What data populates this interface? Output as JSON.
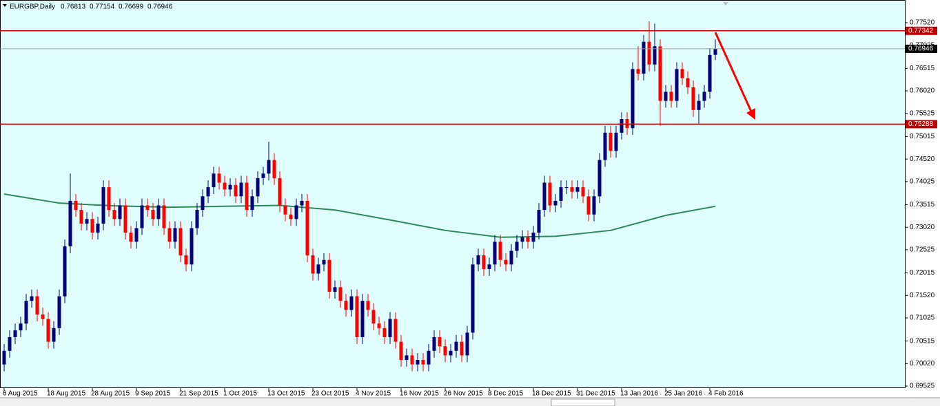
{
  "chart_data": {
    "type": "candlestick",
    "symbol": "EURGBP,Daily",
    "categories": [
      "6 Aug 2015",
      null,
      null,
      null,
      null,
      null,
      null,
      null,
      "18 Aug 2015",
      null,
      null,
      null,
      null,
      null,
      null,
      null,
      "28 Aug 2015",
      null,
      null,
      null,
      null,
      null,
      null,
      null,
      "9 Sep 2015",
      null,
      null,
      null,
      null,
      null,
      null,
      null,
      "21 Sep 2015",
      null,
      null,
      null,
      null,
      null,
      null,
      null,
      "1 Oct 2015",
      null,
      null,
      null,
      null,
      null,
      null,
      null,
      "13 Oct 2015",
      null,
      null,
      null,
      null,
      null,
      null,
      null,
      "23 Oct 2015",
      null,
      null,
      null,
      null,
      null,
      null,
      null,
      "4 Nov 2015",
      null,
      null,
      null,
      null,
      null,
      null,
      null,
      "16 Nov 2015",
      null,
      null,
      null,
      null,
      null,
      null,
      null,
      "26 Nov 2015",
      null,
      null,
      null,
      null,
      null,
      null,
      null,
      "8 Dec 2015",
      null,
      null,
      null,
      null,
      null,
      null,
      null,
      "18 Dec 2015",
      null,
      null,
      null,
      null,
      null,
      null,
      null,
      "31 Dec 2015",
      null,
      null,
      null,
      null,
      null,
      null,
      null,
      "13 Jan 2016",
      null,
      null,
      null,
      null,
      null,
      null,
      null,
      "25 Jan 2016",
      null,
      null,
      null,
      null,
      null,
      null,
      null,
      "4 Feb 2016",
      null
    ],
    "open": [
      0.7,
      0.703,
      0.706,
      0.7075,
      0.709,
      0.714,
      0.715,
      0.711,
      0.71,
      0.705,
      0.708,
      0.715,
      0.726,
      0.736,
      0.734,
      0.731,
      0.732,
      0.729,
      0.731,
      0.739,
      0.734,
      0.732,
      0.735,
      0.729,
      0.727,
      0.73,
      0.735,
      0.734,
      0.732,
      0.735,
      0.73,
      0.727,
      0.73,
      0.724,
      0.722,
      0.73,
      0.734,
      0.737,
      0.739,
      0.742,
      0.74,
      0.7385,
      0.7395,
      0.737,
      0.74,
      0.734,
      0.737,
      0.741,
      0.742,
      0.745,
      0.741,
      0.735,
      0.733,
      0.732,
      0.735,
      0.736,
      0.724,
      0.72,
      0.722,
      0.723,
      0.716,
      0.717,
      0.714,
      0.712,
      0.715,
      0.706,
      0.714,
      0.712,
      0.709,
      0.708,
      0.706,
      0.71,
      0.705,
      0.701,
      0.702,
      0.7,
      0.701,
      0.7,
      0.703,
      0.706,
      0.704,
      0.702,
      0.703,
      0.705,
      0.702,
      0.707,
      0.722,
      0.724,
      0.721,
      0.722,
      0.727,
      0.723,
      0.722,
      0.725,
      0.727,
      0.728,
      0.727,
      0.729,
      0.734,
      0.74,
      0.735,
      0.736,
      0.739,
      0.739,
      0.738,
      0.739,
      0.737,
      0.733,
      0.737,
      0.745,
      0.751,
      0.747,
      0.751,
      0.754,
      0.752,
      0.765,
      0.764,
      0.771,
      0.766,
      0.77,
      0.758,
      0.76,
      0.758,
      0.765,
      0.763,
      0.761,
      0.756,
      0.758,
      0.76,
      0.76813
    ],
    "high": [
      0.7045,
      0.7075,
      0.709,
      0.7105,
      0.7155,
      0.7165,
      0.7165,
      0.7125,
      0.7115,
      0.7095,
      0.7165,
      0.7275,
      0.742,
      0.7375,
      0.7355,
      0.7335,
      0.7335,
      0.7325,
      0.7405,
      0.7405,
      0.7355,
      0.7365,
      0.7365,
      0.7305,
      0.7315,
      0.7365,
      0.7365,
      0.7355,
      0.7365,
      0.7365,
      0.7315,
      0.7315,
      0.7315,
      0.7255,
      0.7315,
      0.7355,
      0.7385,
      0.7405,
      0.7435,
      0.7435,
      0.7415,
      0.741,
      0.741,
      0.7415,
      0.7415,
      0.7385,
      0.7425,
      0.7435,
      0.749,
      0.7465,
      0.7425,
      0.7365,
      0.7345,
      0.7365,
      0.7375,
      0.7375,
      0.7255,
      0.7235,
      0.7245,
      0.7245,
      0.7185,
      0.7185,
      0.7155,
      0.7165,
      0.7165,
      0.7155,
      0.7155,
      0.7135,
      0.7105,
      0.7095,
      0.7115,
      0.7115,
      0.7065,
      0.7035,
      0.7035,
      0.7025,
      0.7025,
      0.7045,
      0.7075,
      0.7075,
      0.7055,
      0.7045,
      0.7065,
      0.7065,
      0.7085,
      0.7235,
      0.7255,
      0.7255,
      0.7235,
      0.7285,
      0.7285,
      0.7245,
      0.7265,
      0.7285,
      0.7295,
      0.7295,
      0.7305,
      0.7355,
      0.7415,
      0.7415,
      0.7375,
      0.7405,
      0.7405,
      0.7405,
      0.7405,
      0.7405,
      0.7385,
      0.7385,
      0.7465,
      0.7525,
      0.7525,
      0.7525,
      0.7555,
      0.7555,
      0.7665,
      0.77,
      0.7725,
      0.7755,
      0.775,
      0.7715,
      0.7615,
      0.7615,
      0.7665,
      0.7665,
      0.7645,
      0.7625,
      0.7595,
      0.7615,
      0.7696,
      0.77154
    ],
    "low": [
      0.6985,
      0.7015,
      0.7045,
      0.706,
      0.7075,
      0.7125,
      0.7095,
      0.7085,
      0.7035,
      0.7035,
      0.7065,
      0.7135,
      0.7245,
      0.7325,
      0.7295,
      0.7295,
      0.7275,
      0.7275,
      0.7295,
      0.7325,
      0.7305,
      0.7305,
      0.7275,
      0.7255,
      0.7255,
      0.7285,
      0.7325,
      0.7305,
      0.7305,
      0.7285,
      0.7255,
      0.7255,
      0.7225,
      0.7205,
      0.7205,
      0.7285,
      0.7325,
      0.7355,
      0.7375,
      0.7385,
      0.737,
      0.737,
      0.7355,
      0.7355,
      0.7325,
      0.7325,
      0.7355,
      0.7395,
      0.7405,
      0.7395,
      0.7335,
      0.7315,
      0.7305,
      0.7305,
      0.7335,
      0.7225,
      0.7185,
      0.7185,
      0.7205,
      0.7145,
      0.7145,
      0.7125,
      0.7105,
      0.7105,
      0.7045,
      0.7045,
      0.7105,
      0.7075,
      0.7065,
      0.7045,
      0.7045,
      0.7035,
      0.6995,
      0.6995,
      0.6985,
      0.6985,
      0.6985,
      0.6985,
      0.7015,
      0.7025,
      0.7005,
      0.7005,
      0.7015,
      0.7005,
      0.7005,
      0.7055,
      0.7205,
      0.7195,
      0.7195,
      0.7205,
      0.7215,
      0.7205,
      0.7205,
      0.7235,
      0.7255,
      0.7255,
      0.7255,
      0.7275,
      0.7325,
      0.7335,
      0.7335,
      0.7345,
      0.7375,
      0.7365,
      0.7365,
      0.7355,
      0.7315,
      0.7315,
      0.7355,
      0.7435,
      0.7455,
      0.7455,
      0.7495,
      0.7505,
      0.7505,
      0.7625,
      0.7625,
      0.7645,
      0.7645,
      0.7525,
      0.7565,
      0.7565,
      0.7565,
      0.7615,
      0.7595,
      0.7545,
      0.753,
      0.7565,
      0.7585,
      0.76699
    ],
    "close": [
      0.703,
      0.706,
      0.7075,
      0.709,
      0.714,
      0.715,
      0.711,
      0.71,
      0.705,
      0.708,
      0.715,
      0.726,
      0.736,
      0.734,
      0.731,
      0.732,
      0.729,
      0.731,
      0.739,
      0.734,
      0.732,
      0.735,
      0.729,
      0.727,
      0.73,
      0.735,
      0.734,
      0.732,
      0.735,
      0.73,
      0.727,
      0.73,
      0.724,
      0.722,
      0.73,
      0.734,
      0.737,
      0.739,
      0.742,
      0.74,
      0.7385,
      0.7395,
      0.737,
      0.74,
      0.734,
      0.737,
      0.741,
      0.742,
      0.745,
      0.741,
      0.735,
      0.733,
      0.732,
      0.735,
      0.736,
      0.724,
      0.72,
      0.722,
      0.723,
      0.716,
      0.717,
      0.714,
      0.712,
      0.715,
      0.706,
      0.714,
      0.712,
      0.709,
      0.708,
      0.706,
      0.71,
      0.705,
      0.701,
      0.702,
      0.7,
      0.701,
      0.7,
      0.703,
      0.706,
      0.704,
      0.702,
      0.703,
      0.705,
      0.702,
      0.707,
      0.722,
      0.724,
      0.721,
      0.722,
      0.727,
      0.723,
      0.722,
      0.725,
      0.727,
      0.728,
      0.727,
      0.729,
      0.734,
      0.74,
      0.735,
      0.736,
      0.739,
      0.739,
      0.738,
      0.739,
      0.737,
      0.733,
      0.737,
      0.745,
      0.751,
      0.747,
      0.751,
      0.754,
      0.752,
      0.765,
      0.764,
      0.771,
      0.766,
      0.77,
      0.758,
      0.76,
      0.758,
      0.765,
      0.763,
      0.761,
      0.756,
      0.758,
      0.76,
      0.7681,
      0.76946
    ],
    "up_color": "#00007f",
    "down_color": "#ff0000",
    "moving_average": {
      "color": "#2e8b57",
      "x": [
        0,
        10,
        20,
        30,
        40,
        50,
        60,
        70,
        80,
        90,
        100,
        110,
        120,
        129
      ],
      "values": [
        0.7375,
        0.7355,
        0.7349,
        0.7346,
        0.7348,
        0.735,
        0.734,
        0.7318,
        0.7295,
        0.728,
        0.7282,
        0.7295,
        0.7328,
        0.7348
      ]
    },
    "levels": [
      {
        "value": 0.77342,
        "color": "#c00000"
      },
      {
        "value": 0.75288,
        "color": "#c00000"
      },
      {
        "value": 0.76946,
        "color": "#000000"
      }
    ],
    "ylim": [
      0.69525,
      0.7752
    ],
    "yticks": [
      {
        "value": 0.7752,
        "label": "0.77520"
      },
      {
        "value": 0.77025,
        "label": "0.77025"
      },
      {
        "value": 0.76515,
        "label": "0.76515"
      },
      {
        "value": 0.7602,
        "label": "0.76020"
      },
      {
        "value": 0.75525,
        "label": "0.75525"
      },
      {
        "value": 0.75015,
        "label": "0.75015"
      },
      {
        "value": 0.7452,
        "label": "0.74520"
      },
      {
        "value": 0.74025,
        "label": "0.74025"
      },
      {
        "value": 0.73515,
        "label": "0.73515"
      },
      {
        "value": 0.7302,
        "label": "0.73020"
      },
      {
        "value": 0.72525,
        "label": "0.72525"
      },
      {
        "value": 0.72015,
        "label": "0.72015"
      },
      {
        "value": 0.7152,
        "label": "0.71520"
      },
      {
        "value": 0.71025,
        "label": "0.71025"
      },
      {
        "value": 0.70515,
        "label": "0.70515"
      },
      {
        "value": 0.7002,
        "label": "0.70020"
      },
      {
        "value": 0.69525,
        "label": "0.69525"
      }
    ]
  }
}
